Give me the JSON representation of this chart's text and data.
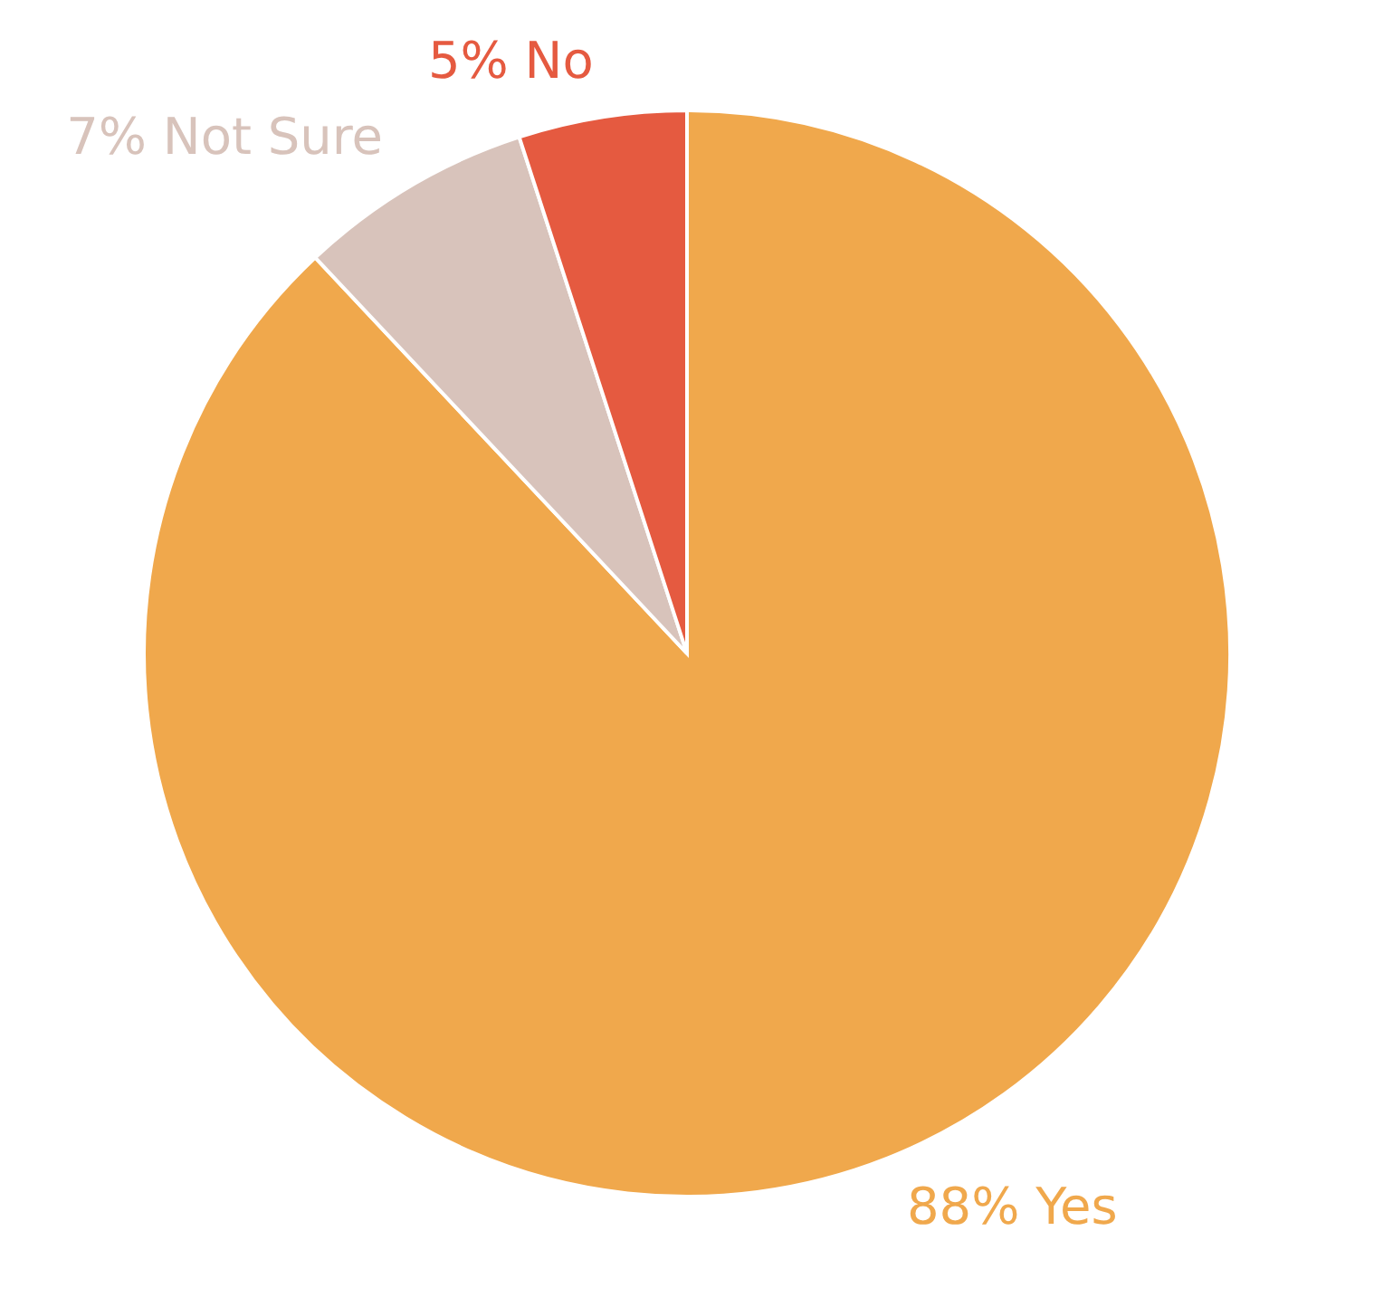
{
  "chart_data": {
    "type": "pie",
    "categories": [
      "Yes",
      "Not Sure",
      "No"
    ],
    "values": [
      88,
      7,
      5
    ],
    "colors": [
      "#f0a84c",
      "#d8c3bb",
      "#e55a40"
    ],
    "value_labels": [
      "88%",
      "7%",
      "5%"
    ]
  }
}
